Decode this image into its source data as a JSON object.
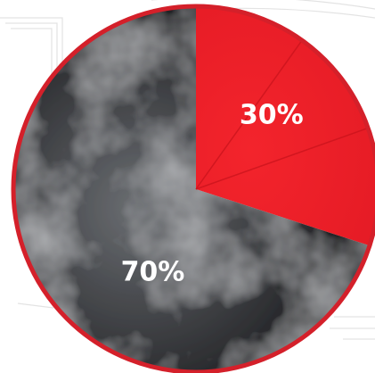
{
  "chart_data": {
    "type": "pie",
    "title": "",
    "slices": [
      {
        "value": 30,
        "label": "30%",
        "color": "#ef1c27",
        "fill": "red"
      },
      {
        "value": 70,
        "label": "70%",
        "color": "#2b2d30",
        "fill": "smoke"
      }
    ],
    "legend": "none",
    "border_color": "#d4202a"
  }
}
